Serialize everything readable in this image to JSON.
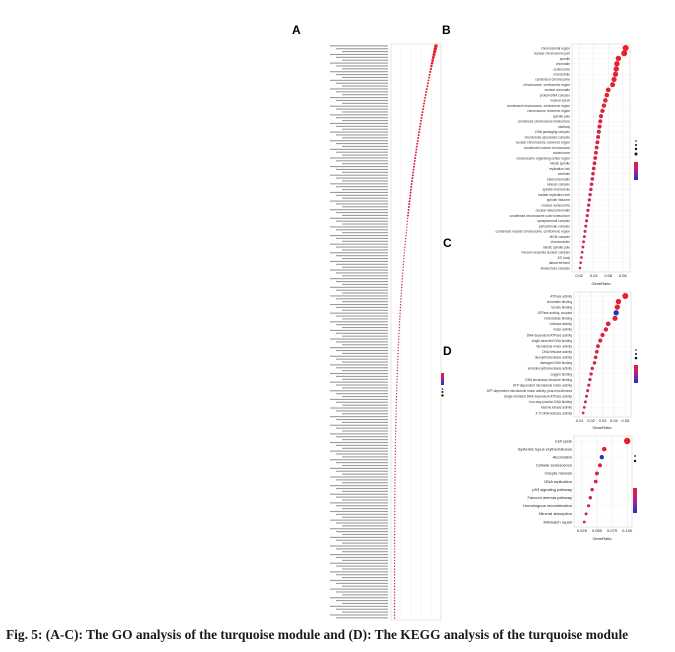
{
  "panel_labels": {
    "A": "A",
    "B": "B",
    "C": "C",
    "D": "D"
  },
  "caption": "Fig. 5: (A-C): The GO analysis of the turquoise module and (D): The KEGG analysis of the turquoise module",
  "colors": {
    "high": "#e8202a",
    "low": "#2030c0",
    "grid": "#dcdcdc",
    "mid": "#c02060"
  },
  "chart_data": [
    {
      "id": "A",
      "type": "scatter",
      "title": "",
      "xlabel": "",
      "ylabel": "",
      "n_terms": 200,
      "xlim": [
        0,
        0.06
      ],
      "ratio_max": 0.056,
      "ratio_min": 0.002,
      "legend": "left-middle",
      "grid": true
    },
    {
      "id": "B",
      "type": "scatter",
      "xlabel": "GeneRatio",
      "x_ticks": [
        "0.02",
        "0.04",
        "0.06",
        "0.08"
      ],
      "xlim": [
        0.01,
        0.09
      ],
      "legend": "right",
      "grid": true,
      "terms": [
        "chromosomal region",
        "nuclear chromosome part",
        "spindle",
        "chromatin",
        "centrosome",
        "microtubule",
        "condensed chromosome",
        "chromosome, centromeric region",
        "nuclear chromatin",
        "protein-DNA complex",
        "nuclear speck",
        "condensed chromosome, centromeric region",
        "chromosome, telomeric region",
        "spindle pole",
        "condensed chromosome kinetochore",
        "midbody",
        "DNA packaging complex",
        "microtubule associated complex",
        "nuclear chromosome, telomeric region",
        "condensed nuclear chromosome",
        "nucleosome",
        "chromosome organizing center region",
        "mitotic spindle",
        "replication fork",
        "centriole",
        "heterochromatin",
        "kinesin complex",
        "spindle microtubule",
        "nuclear replication fork",
        "spindle midzone",
        "nuclear nucleosome",
        "nuclear heterochromatin",
        "condensed chromosome outer kinetochore",
        "synaptonemal complex",
        "pericentriolar complex",
        "condensed nuclear chromosome, centromeric region",
        "MCM complex",
        "chromocenter",
        "mitotic spindle pole",
        "Fanconi anaemia nuclear complex",
        "ATI body",
        "lateral element",
        "kinetochore complex"
      ],
      "values": [
        0.084,
        0.082,
        0.074,
        0.072,
        0.071,
        0.07,
        0.068,
        0.066,
        0.06,
        0.058,
        0.056,
        0.054,
        0.052,
        0.05,
        0.049,
        0.048,
        0.047,
        0.046,
        0.045,
        0.044,
        0.043,
        0.042,
        0.041,
        0.04,
        0.039,
        0.038,
        0.037,
        0.036,
        0.035,
        0.034,
        0.033,
        0.032,
        0.031,
        0.03,
        0.029,
        0.028,
        0.027,
        0.026,
        0.025,
        0.024,
        0.023,
        0.022,
        0.021
      ]
    },
    {
      "id": "C",
      "type": "scatter",
      "xlabel": "GeneRatio",
      "x_ticks": [
        "0.01",
        "0.02",
        "0.03",
        "0.04",
        "0.05"
      ],
      "xlim": [
        0.005,
        0.055
      ],
      "legend": "right",
      "grid": true,
      "terms": [
        "ATPase activity",
        "chromatin binding",
        "tubulin binding",
        "ATPase activity, coupled",
        "microtubule binding",
        "helicase activity",
        "motor activity",
        "DNA-dependent ATPase activity",
        "single-stranded DNA binding",
        "microtubule motor activity",
        "DNA helicase activity",
        "deoxyribonuclease activity",
        "damaged DNA binding",
        "endodeoxyribonuclease activity",
        "oxygen binding",
        "DNA secondary structure binding",
        "ATP-dependent microtubule motor activity",
        "ATP-dependent microtubule motor activity, plus-end-directed",
        "single-stranded DNA-dependent ATPase activity",
        "four-way junction DNA binding",
        "histone kinase activity",
        "3'-5' DNA helicase activity"
      ],
      "values": [
        0.05,
        0.044,
        0.043,
        0.042,
        0.041,
        0.035,
        0.033,
        0.03,
        0.028,
        0.026,
        0.025,
        0.024,
        0.023,
        0.021,
        0.02,
        0.019,
        0.018,
        0.017,
        0.016,
        0.015,
        0.014,
        0.013
      ]
    },
    {
      "id": "D",
      "type": "scatter",
      "xlabel": "GeneRatio",
      "x_ticks": [
        "0.025",
        "0.050",
        "0.075",
        "0.100"
      ],
      "xlim": [
        0.012,
        0.108
      ],
      "legend": "right",
      "grid": true,
      "terms": [
        "Cell cycle",
        "Systemic lupus erythematosus",
        "Alcoholism",
        "Cellular senescence",
        "Oocyte meiosis",
        "DNA replication",
        "p53 signaling pathway",
        "Fanconi anemia pathway",
        "Homologous recombination",
        "Mineral absorption",
        "Mismatch repair"
      ],
      "values": [
        0.1,
        0.062,
        0.058,
        0.055,
        0.05,
        0.048,
        0.042,
        0.039,
        0.036,
        0.032,
        0.029
      ]
    }
  ]
}
